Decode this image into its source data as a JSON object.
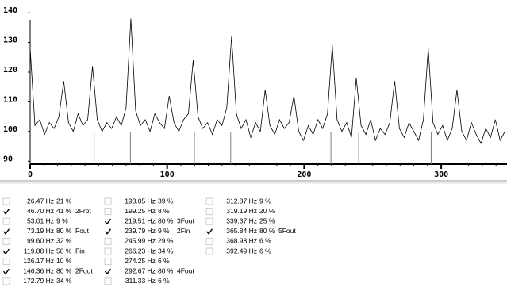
{
  "chart_data": {
    "type": "line",
    "x": [
      0,
      3.5,
      7,
      10.5,
      14,
      17.5,
      21,
      24.5,
      28,
      31.5,
      35,
      38.5,
      42,
      45.5,
      49,
      52.5,
      56,
      59.5,
      63,
      66.5,
      70,
      73.5,
      77,
      80.5,
      84,
      87.5,
      91,
      94.5,
      98,
      101.5,
      105,
      108.5,
      112,
      115.5,
      119,
      122.5,
      126,
      129.5,
      133,
      136.5,
      140,
      143.5,
      147,
      150.5,
      154,
      157.5,
      161,
      164.5,
      168,
      171.5,
      175,
      178.5,
      182,
      185.5,
      189,
      192.5,
      196,
      199.5,
      203,
      206.5,
      210,
      213.5,
      217,
      220.5,
      224,
      227.5,
      231,
      234.5,
      238,
      241.5,
      245,
      248.5,
      252,
      255.5,
      259,
      262.5,
      266,
      269.5,
      273,
      276.5,
      280,
      283.5,
      287,
      290.5,
      294,
      297.5,
      301,
      304.5,
      308,
      311.5,
      315,
      318.5,
      322,
      325.5,
      329,
      332.5,
      336,
      339.5,
      343,
      346.5
    ],
    "series": [
      {
        "color": "#000000",
        "values": [
          128,
          102,
          104,
          99,
          103,
          101,
          105,
          117,
          103,
          100,
          106,
          102,
          104,
          122,
          104,
          100,
          103,
          101,
          105,
          102,
          108,
          138,
          107,
          102,
          104,
          100,
          106,
          103,
          101,
          112,
          103,
          100,
          104,
          106,
          124,
          105,
          101,
          103,
          99,
          104,
          102,
          108,
          132,
          106,
          101,
          104,
          98,
          103,
          100,
          114,
          102,
          99,
          104,
          101,
          103,
          112,
          100,
          97,
          102,
          99,
          104,
          101,
          106,
          129,
          104,
          100,
          103,
          98,
          118,
          102,
          99,
          104,
          97,
          101,
          99,
          103,
          117,
          101,
          98,
          103,
          100,
          97,
          104,
          128,
          103,
          99,
          102,
          97,
          101,
          114,
          100,
          97,
          103,
          99,
          96,
          101,
          98,
          104,
          97,
          100
        ]
      }
    ],
    "markers": [
      46.7,
      73.19,
      119.88,
      146.36,
      219.51,
      239.79,
      292.67
    ],
    "marker_color": "#808080",
    "xlim": [
      0,
      348
    ],
    "ylim": [
      89,
      143
    ],
    "xticks": [
      0,
      100,
      200,
      300
    ],
    "yticks": [
      90,
      100,
      110,
      120,
      130,
      140
    ]
  },
  "peaks": {
    "columns": [
      [
        {
          "freq": "26.47 Hz",
          "amp": "21 %",
          "checked": false
        },
        {
          "freq": "46.70 Hz",
          "amp": "41 %",
          "label": "2Frot",
          "checked": true
        },
        {
          "freq": "53.01 Hz",
          "amp": "9 %",
          "checked": false
        },
        {
          "freq": "73.19 Hz",
          "amp": "80 %",
          "label": "Fout",
          "checked": true
        },
        {
          "freq": "99.60 Hz",
          "amp": "32 %",
          "checked": false
        },
        {
          "freq": "119.88 Hz",
          "amp": "50 %",
          "label": "Fin",
          "checked": true
        },
        {
          "freq": "126.17 Hz",
          "amp": "10 %",
          "checked": false
        },
        {
          "freq": "146.36 Hz",
          "amp": "80 %",
          "label": "2Fout",
          "checked": true
        },
        {
          "freq": "172.79 Hz",
          "amp": "34 %",
          "checked": false
        }
      ],
      [
        {
          "freq": "193.05 Hz",
          "amp": "39 %",
          "checked": false
        },
        {
          "freq": "199.25 Hz",
          "amp": "8 %",
          "checked": false
        },
        {
          "freq": "219.51 Hz",
          "amp": "80 %",
          "label": "3Fout",
          "checked": true
        },
        {
          "freq": "239.79 Hz",
          "amp": "9 %",
          "label": "2Fin",
          "checked": true
        },
        {
          "freq": "245.99 Hz",
          "amp": "29 %",
          "checked": false
        },
        {
          "freq": "266.23 Hz",
          "amp": "34 %",
          "checked": false
        },
        {
          "freq": "274.25 Hz",
          "amp": "6 %",
          "checked": false
        },
        {
          "freq": "292.67 Hz",
          "amp": "80 %",
          "label": "4Fout",
          "checked": true
        },
        {
          "freq": "311.33 Hz",
          "amp": "6 %",
          "checked": false
        }
      ],
      [
        {
          "freq": "312.87 Hz",
          "amp": "9 %",
          "checked": false
        },
        {
          "freq": "319.19 Hz",
          "amp": "20 %",
          "checked": false
        },
        {
          "freq": "339.37 Hz",
          "amp": "25 %",
          "checked": false
        },
        {
          "freq": "365.84 Hz",
          "amp": "80 %",
          "label": "5Fout",
          "checked": true
        },
        {
          "freq": "368.98 Hz",
          "amp": "6 %",
          "checked": false
        },
        {
          "freq": "392.49 Hz",
          "amp": "6 %",
          "checked": false
        }
      ]
    ]
  }
}
